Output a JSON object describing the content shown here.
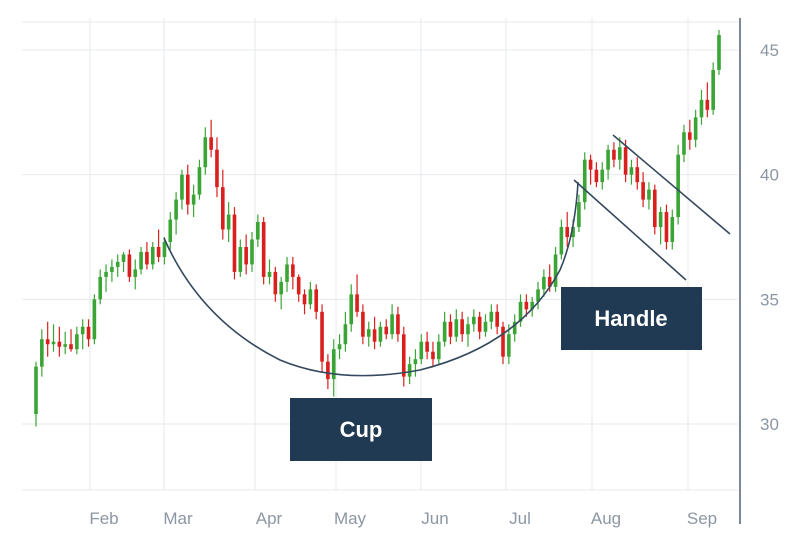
{
  "chart_data": {
    "type": "candlestick",
    "title": "",
    "xlabel": "",
    "ylabel": "",
    "x_tick_labels": [
      "Feb",
      "Mar",
      "Apr",
      "May",
      "Jun",
      "Jul",
      "Aug",
      "Sep"
    ],
    "y_ticks": [
      30,
      35,
      40,
      45
    ],
    "ylim": [
      27.4,
      46.5
    ],
    "grid": true,
    "y_axis_side": "right",
    "colors": {
      "up": "#3aa535",
      "down": "#d9201e",
      "grid": "#e6eaee",
      "axis": "#5b6b7e",
      "annotation_box": "#1f3a52",
      "pattern_line": "#34495e"
    },
    "series": [
      {
        "values": [
          [
            30.4,
            32.5,
            29.9,
            32.3
          ],
          [
            32.3,
            33.8,
            31.9,
            33.4
          ],
          [
            33.4,
            34.1,
            32.7,
            33.2
          ],
          [
            33.2,
            34.0,
            32.9,
            33.3
          ],
          [
            33.3,
            33.9,
            32.7,
            33.1
          ],
          [
            33.1,
            33.7,
            32.8,
            33.2
          ],
          [
            33.2,
            33.8,
            32.9,
            33.0
          ],
          [
            33.0,
            33.9,
            32.8,
            33.6
          ],
          [
            33.6,
            34.2,
            33.0,
            33.9
          ],
          [
            33.9,
            34.2,
            33.1,
            33.4
          ],
          [
            33.4,
            35.2,
            33.2,
            35.0
          ],
          [
            35.0,
            36.2,
            34.8,
            35.9
          ],
          [
            35.9,
            36.4,
            35.3,
            36.1
          ],
          [
            36.1,
            36.6,
            35.7,
            36.3
          ],
          [
            36.3,
            36.8,
            35.9,
            36.5
          ],
          [
            36.5,
            36.9,
            36.1,
            36.8
          ],
          [
            36.8,
            37.0,
            35.7,
            35.9
          ],
          [
            35.9,
            36.6,
            35.4,
            36.2
          ],
          [
            36.2,
            37.1,
            36.0,
            36.9
          ],
          [
            36.9,
            37.3,
            36.2,
            36.4
          ],
          [
            36.4,
            37.3,
            36.2,
            37.1
          ],
          [
            37.1,
            37.8,
            36.5,
            36.7
          ],
          [
            36.7,
            37.5,
            36.4,
            37.3
          ],
          [
            37.3,
            38.5,
            37.0,
            38.2
          ],
          [
            38.2,
            39.3,
            37.6,
            39.0
          ],
          [
            39.0,
            40.2,
            38.6,
            40.0
          ],
          [
            40.0,
            40.4,
            38.4,
            38.8
          ],
          [
            38.8,
            39.6,
            38.3,
            39.2
          ],
          [
            39.2,
            40.6,
            39.0,
            40.3
          ],
          [
            40.3,
            41.9,
            40.0,
            41.5
          ],
          [
            41.5,
            42.2,
            40.7,
            41.0
          ],
          [
            41.0,
            41.5,
            39.1,
            39.5
          ],
          [
            39.5,
            40.2,
            37.4,
            37.8
          ],
          [
            37.8,
            38.9,
            37.3,
            38.4
          ],
          [
            38.4,
            38.7,
            35.8,
            36.1
          ],
          [
            36.1,
            37.4,
            35.9,
            37.1
          ],
          [
            37.1,
            37.6,
            36.0,
            36.4
          ],
          [
            36.4,
            37.7,
            36.1,
            37.4
          ],
          [
            37.4,
            38.4,
            37.1,
            38.1
          ],
          [
            38.1,
            38.3,
            35.6,
            35.9
          ],
          [
            35.9,
            36.6,
            35.6,
            36.1
          ],
          [
            36.1,
            36.3,
            34.9,
            35.2
          ],
          [
            35.2,
            35.9,
            34.6,
            35.7
          ],
          [
            35.7,
            36.7,
            35.3,
            36.4
          ],
          [
            36.4,
            36.7,
            35.4,
            35.9
          ],
          [
            35.9,
            36.0,
            34.9,
            35.2
          ],
          [
            35.2,
            35.4,
            34.4,
            34.8
          ],
          [
            34.8,
            35.7,
            34.6,
            35.4
          ],
          [
            35.4,
            35.6,
            34.2,
            34.5
          ],
          [
            34.5,
            34.8,
            32.1,
            32.5
          ],
          [
            32.5,
            32.8,
            31.4,
            31.8
          ],
          [
            31.8,
            33.4,
            31.1,
            33.0
          ],
          [
            33.0,
            33.6,
            32.6,
            33.2
          ],
          [
            33.2,
            34.5,
            32.9,
            34.0
          ],
          [
            34.0,
            35.6,
            33.7,
            35.2
          ],
          [
            35.2,
            36.0,
            34.3,
            34.5
          ],
          [
            34.5,
            34.8,
            33.2,
            33.5
          ],
          [
            33.5,
            34.1,
            33.1,
            33.8
          ],
          [
            33.8,
            34.3,
            33.0,
            33.3
          ],
          [
            33.3,
            34.1,
            33.1,
            33.9
          ],
          [
            33.9,
            34.2,
            33.4,
            33.6
          ],
          [
            33.6,
            34.8,
            33.4,
            34.4
          ],
          [
            34.4,
            34.7,
            33.3,
            33.6
          ],
          [
            33.6,
            33.9,
            31.5,
            31.9
          ],
          [
            31.9,
            32.7,
            31.6,
            32.4
          ],
          [
            32.4,
            33.0,
            31.9,
            32.6
          ],
          [
            32.6,
            33.6,
            32.4,
            33.3
          ],
          [
            33.3,
            33.7,
            32.6,
            32.9
          ],
          [
            32.9,
            33.3,
            32.3,
            32.6
          ],
          [
            32.6,
            33.6,
            32.4,
            33.3
          ],
          [
            33.3,
            34.5,
            33.1,
            34.1
          ],
          [
            34.1,
            34.4,
            33.2,
            33.5
          ],
          [
            33.5,
            34.6,
            33.3,
            34.2
          ],
          [
            34.2,
            34.5,
            33.3,
            33.6
          ],
          [
            33.6,
            34.3,
            33.1,
            34.0
          ],
          [
            34.0,
            34.6,
            33.7,
            34.3
          ],
          [
            34.3,
            34.5,
            33.4,
            33.7
          ],
          [
            33.7,
            34.4,
            33.5,
            34.1
          ],
          [
            34.1,
            34.8,
            33.8,
            34.5
          ],
          [
            34.5,
            34.8,
            33.6,
            33.9
          ],
          [
            33.9,
            34.1,
            32.4,
            32.7
          ],
          [
            32.7,
            34.0,
            32.4,
            33.6
          ],
          [
            33.6,
            34.4,
            33.3,
            34.1
          ],
          [
            34.1,
            35.2,
            33.9,
            34.9
          ],
          [
            34.9,
            35.2,
            34.3,
            34.6
          ],
          [
            34.6,
            35.1,
            34.3,
            34.9
          ],
          [
            34.9,
            35.7,
            34.6,
            35.4
          ],
          [
            35.4,
            36.2,
            35.1,
            35.9
          ],
          [
            35.9,
            36.4,
            35.3,
            35.5
          ],
          [
            35.5,
            37.1,
            35.3,
            36.8
          ],
          [
            36.8,
            38.2,
            36.6,
            37.9
          ],
          [
            37.9,
            38.5,
            37.1,
            37.5
          ],
          [
            37.5,
            38.2,
            37.1,
            37.9
          ],
          [
            37.9,
            39.2,
            37.7,
            38.9
          ],
          [
            38.9,
            40.9,
            38.6,
            40.6
          ],
          [
            40.6,
            40.8,
            39.6,
            40.2
          ],
          [
            40.2,
            40.5,
            39.5,
            39.7
          ],
          [
            39.7,
            40.5,
            39.4,
            40.2
          ],
          [
            40.2,
            41.2,
            39.8,
            41.0
          ],
          [
            41.0,
            41.3,
            40.3,
            40.6
          ],
          [
            40.6,
            41.5,
            40.2,
            41.1
          ],
          [
            41.1,
            41.4,
            39.7,
            40.0
          ],
          [
            40.0,
            40.6,
            39.6,
            40.3
          ],
          [
            40.3,
            40.7,
            39.4,
            39.7
          ],
          [
            39.7,
            40.1,
            38.7,
            39.0
          ],
          [
            39.0,
            39.7,
            38.6,
            39.4
          ],
          [
            39.4,
            39.6,
            37.6,
            37.9
          ],
          [
            37.9,
            38.7,
            37.2,
            38.5
          ],
          [
            38.5,
            38.8,
            37.0,
            37.3
          ],
          [
            37.3,
            38.6,
            37.0,
            38.3
          ],
          [
            38.3,
            41.2,
            38.0,
            40.8
          ],
          [
            40.8,
            42.0,
            40.5,
            41.7
          ],
          [
            41.7,
            42.2,
            41.0,
            41.4
          ],
          [
            41.4,
            42.6,
            41.1,
            42.3
          ],
          [
            42.3,
            43.4,
            42.0,
            43.0
          ],
          [
            43.0,
            43.7,
            42.3,
            42.6
          ],
          [
            42.6,
            44.5,
            42.4,
            44.2
          ],
          [
            44.2,
            45.8,
            44.0,
            45.6
          ]
        ]
      }
    ],
    "annotations": [
      "Cup",
      "Handle"
    ]
  }
}
